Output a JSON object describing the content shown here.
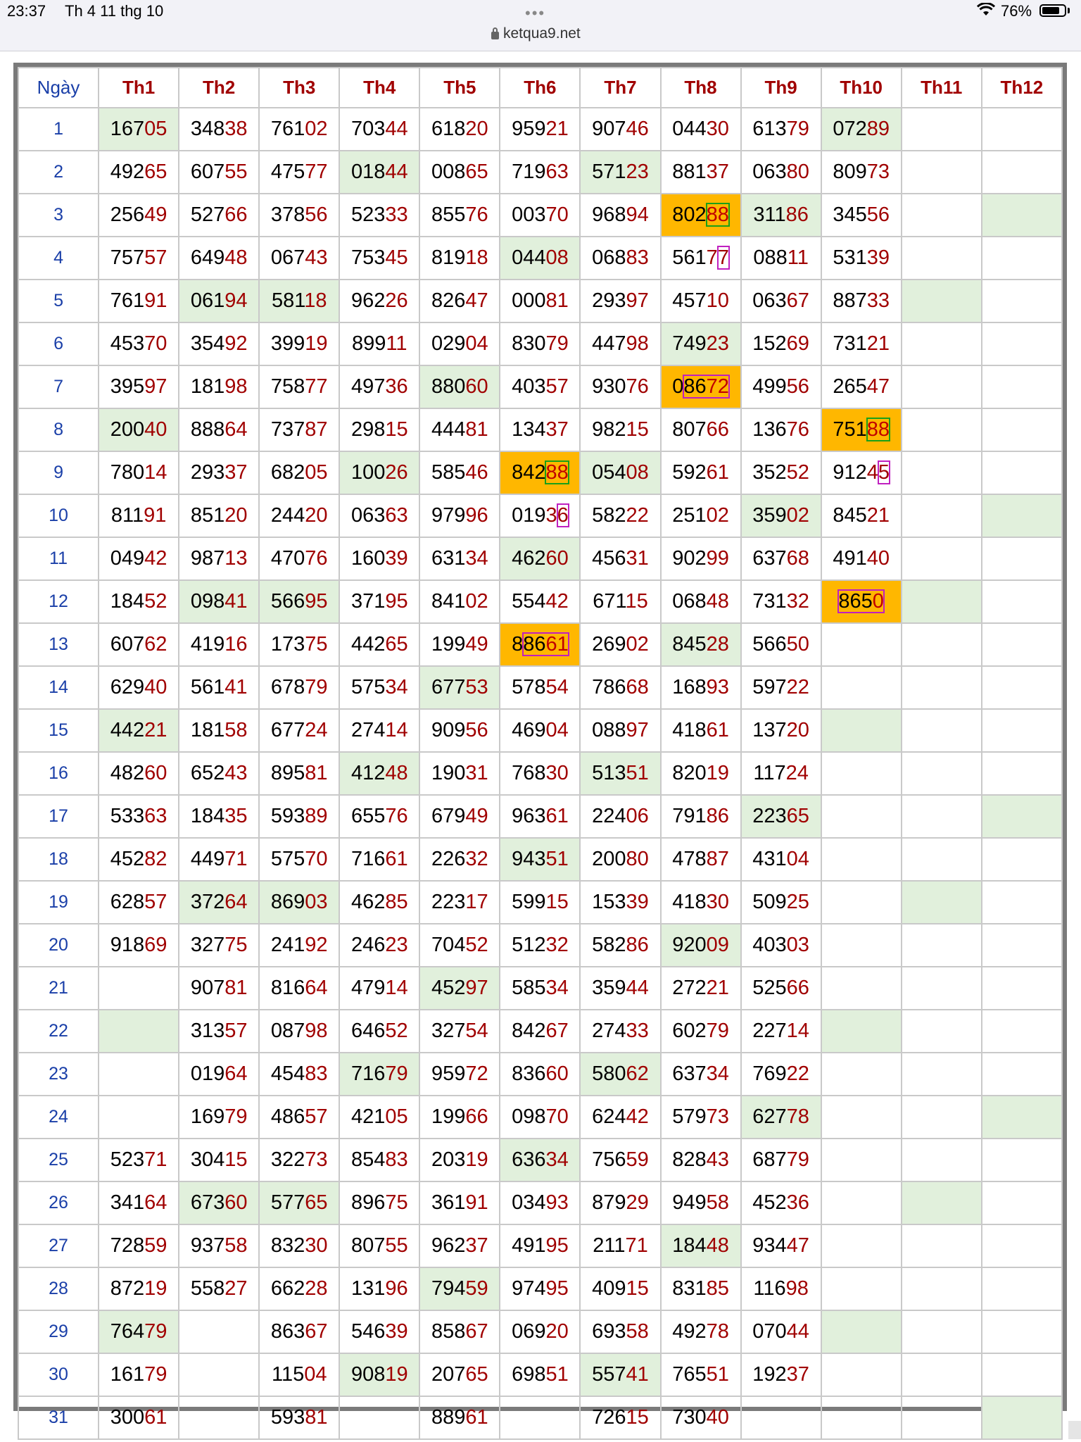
{
  "status_bar": {
    "time": "23:37",
    "date": "Th 4 11 thg 10",
    "battery": "76%",
    "url": "ketqua9.net",
    "more_icon": "more-dots-icon"
  },
  "table": {
    "day_header": "Ngày",
    "months": [
      "Th1",
      "Th2",
      "Th3",
      "Th4",
      "Th5",
      "Th6",
      "Th7",
      "Th8",
      "Th9",
      "Th10",
      "Th11",
      "Th12"
    ],
    "rows": [
      {
        "day": "1",
        "cells": [
          "16705",
          "34838",
          "76102",
          "70344",
          "61820",
          "95921",
          "90746",
          "04430",
          "61379",
          "07289",
          "",
          ""
        ]
      },
      {
        "day": "2",
        "cells": [
          "49265",
          "60755",
          "47577",
          "01844",
          "00865",
          "71963",
          "57123",
          "88137",
          "06380",
          "80973",
          "",
          ""
        ]
      },
      {
        "day": "3",
        "cells": [
          "25649",
          "52766",
          "37856",
          "52333",
          "85576",
          "00370",
          "96894",
          "80288",
          "31186",
          "34556",
          "",
          ""
        ]
      },
      {
        "day": "4",
        "cells": [
          "75757",
          "64948",
          "06743",
          "75345",
          "81918",
          "04408",
          "06883",
          "56177",
          "08811",
          "53139",
          "",
          ""
        ]
      },
      {
        "day": "5",
        "cells": [
          "76191",
          "06194",
          "58118",
          "96226",
          "82647",
          "00081",
          "29397",
          "45710",
          "06367",
          "88733",
          "",
          ""
        ]
      },
      {
        "day": "6",
        "cells": [
          "45370",
          "35492",
          "39919",
          "89911",
          "02904",
          "83079",
          "44798",
          "74923",
          "15269",
          "73121",
          "",
          ""
        ]
      },
      {
        "day": "7",
        "cells": [
          "39597",
          "18198",
          "75877",
          "49736",
          "88060",
          "40357",
          "93076",
          "08672",
          "49956",
          "26547",
          "",
          ""
        ]
      },
      {
        "day": "8",
        "cells": [
          "20040",
          "88864",
          "73787",
          "29815",
          "44481",
          "13437",
          "98215",
          "80766",
          "13676",
          "75188",
          "",
          ""
        ]
      },
      {
        "day": "9",
        "cells": [
          "78014",
          "29337",
          "68205",
          "10026",
          "58546",
          "84288",
          "05408",
          "59261",
          "35252",
          "91245",
          "",
          ""
        ]
      },
      {
        "day": "10",
        "cells": [
          "81191",
          "85120",
          "24420",
          "06363",
          "97996",
          "01936",
          "58222",
          "25102",
          "35902",
          "84521",
          "",
          ""
        ]
      },
      {
        "day": "11",
        "cells": [
          "04942",
          "98713",
          "47076",
          "16039",
          "63134",
          "46260",
          "45631",
          "90299",
          "63768",
          "49140",
          "",
          ""
        ]
      },
      {
        "day": "12",
        "cells": [
          "18452",
          "09841",
          "56695",
          "37195",
          "84102",
          "55442",
          "67115",
          "06848",
          "73132",
          "8650",
          "",
          ""
        ]
      },
      {
        "day": "13",
        "cells": [
          "60762",
          "41916",
          "17375",
          "44265",
          "19949",
          "88661",
          "26902",
          "84528",
          "56650",
          "",
          "",
          ""
        ]
      },
      {
        "day": "14",
        "cells": [
          "62940",
          "56141",
          "67879",
          "57534",
          "67753",
          "57854",
          "78668",
          "16893",
          "59722",
          "",
          "",
          ""
        ]
      },
      {
        "day": "15",
        "cells": [
          "44221",
          "18158",
          "67724",
          "27414",
          "90956",
          "46904",
          "08897",
          "41861",
          "13720",
          "",
          "",
          ""
        ]
      },
      {
        "day": "16",
        "cells": [
          "48260",
          "65243",
          "89581",
          "41248",
          "19031",
          "76830",
          "51351",
          "82019",
          "11724",
          "",
          "",
          ""
        ]
      },
      {
        "day": "17",
        "cells": [
          "53363",
          "18435",
          "59389",
          "65576",
          "67949",
          "96361",
          "22406",
          "79186",
          "22365",
          "",
          "",
          ""
        ]
      },
      {
        "day": "18",
        "cells": [
          "45282",
          "44971",
          "57570",
          "71661",
          "22632",
          "94351",
          "20080",
          "47887",
          "43104",
          "",
          "",
          ""
        ]
      },
      {
        "day": "19",
        "cells": [
          "62857",
          "37264",
          "86903",
          "46285",
          "22317",
          "59915",
          "15339",
          "41830",
          "50925",
          "",
          "",
          ""
        ]
      },
      {
        "day": "20",
        "cells": [
          "91869",
          "32775",
          "24192",
          "24623",
          "70452",
          "51232",
          "58286",
          "92009",
          "40303",
          "",
          "",
          ""
        ]
      },
      {
        "day": "21",
        "cells": [
          "",
          "90781",
          "81664",
          "47914",
          "45297",
          "58534",
          "35944",
          "27221",
          "52566",
          "",
          "",
          ""
        ]
      },
      {
        "day": "22",
        "cells": [
          "",
          "31357",
          "08798",
          "64652",
          "32754",
          "84267",
          "27433",
          "60279",
          "22714",
          "",
          "",
          ""
        ]
      },
      {
        "day": "23",
        "cells": [
          "",
          "01964",
          "45483",
          "71679",
          "95972",
          "83660",
          "58062",
          "63734",
          "76922",
          "",
          "",
          ""
        ]
      },
      {
        "day": "24",
        "cells": [
          "",
          "16979",
          "48657",
          "42105",
          "19966",
          "09870",
          "62442",
          "57973",
          "62778",
          "",
          "",
          ""
        ]
      },
      {
        "day": "25",
        "cells": [
          "52371",
          "30415",
          "32273",
          "85483",
          "20319",
          "63634",
          "75659",
          "82843",
          "68779",
          "",
          "",
          ""
        ]
      },
      {
        "day": "26",
        "cells": [
          "34164",
          "67360",
          "57765",
          "89675",
          "36191",
          "03493",
          "87929",
          "94958",
          "45236",
          "",
          "",
          ""
        ]
      },
      {
        "day": "27",
        "cells": [
          "72859",
          "93758",
          "83230",
          "80755",
          "96237",
          "49195",
          "21171",
          "18448",
          "93447",
          "",
          "",
          ""
        ]
      },
      {
        "day": "28",
        "cells": [
          "87219",
          "55827",
          "66228",
          "13196",
          "79459",
          "97495",
          "40915",
          "83185",
          "11698",
          "",
          "",
          ""
        ]
      },
      {
        "day": "29",
        "cells": [
          "76479",
          "",
          "86367",
          "54639",
          "85867",
          "06920",
          "69358",
          "49278",
          "07044",
          "",
          "",
          ""
        ]
      },
      {
        "day": "30",
        "cells": [
          "16179",
          "",
          "11504",
          "90819",
          "20765",
          "69851",
          "55741",
          "76551",
          "19237",
          "",
          "",
          ""
        ]
      },
      {
        "day": "31",
        "cells": [
          "30061",
          "",
          "59381",
          "",
          "88961",
          "",
          "72615",
          "73040",
          "",
          "",
          "",
          ""
        ]
      }
    ],
    "highlight_cells": [
      [
        0,
        0
      ],
      [
        0,
        9
      ],
      [
        1,
        3
      ],
      [
        1,
        6
      ],
      [
        2,
        8
      ],
      [
        2,
        11
      ],
      [
        3,
        5
      ],
      [
        4,
        1
      ],
      [
        4,
        2
      ],
      [
        4,
        10
      ],
      [
        5,
        7
      ],
      [
        6,
        4
      ],
      [
        7,
        0
      ],
      [
        8,
        3
      ],
      [
        8,
        6
      ],
      [
        9,
        8
      ],
      [
        9,
        11
      ],
      [
        10,
        5
      ],
      [
        11,
        1
      ],
      [
        11,
        2
      ],
      [
        11,
        10
      ],
      [
        12,
        7
      ],
      [
        13,
        4
      ],
      [
        14,
        0
      ],
      [
        14,
        9
      ],
      [
        15,
        3
      ],
      [
        15,
        6
      ],
      [
        16,
        8
      ],
      [
        16,
        11
      ],
      [
        17,
        5
      ],
      [
        18,
        1
      ],
      [
        18,
        2
      ],
      [
        18,
        10
      ],
      [
        19,
        7
      ],
      [
        20,
        4
      ],
      [
        21,
        0
      ],
      [
        21,
        9
      ],
      [
        22,
        3
      ],
      [
        22,
        6
      ],
      [
        23,
        8
      ],
      [
        23,
        11
      ],
      [
        24,
        5
      ],
      [
        25,
        1
      ],
      [
        25,
        2
      ],
      [
        25,
        10
      ],
      [
        26,
        7
      ],
      [
        27,
        4
      ],
      [
        28,
        0
      ],
      [
        28,
        9
      ],
      [
        29,
        3
      ],
      [
        29,
        6
      ],
      [
        30,
        11
      ]
    ],
    "orange_cells": [
      [
        2,
        7
      ],
      [
        6,
        7
      ],
      [
        7,
        9
      ],
      [
        8,
        5
      ],
      [
        11,
        9
      ],
      [
        12,
        5
      ]
    ],
    "colors": {
      "header_month": "#a00000",
      "day_blue": "#1a3fa8",
      "tail_red": "#a00000",
      "highlight_green": "#e1f0dc",
      "orange": "#ffb700",
      "box_green": "#19a019",
      "box_magenta": "#c020c0"
    }
  }
}
